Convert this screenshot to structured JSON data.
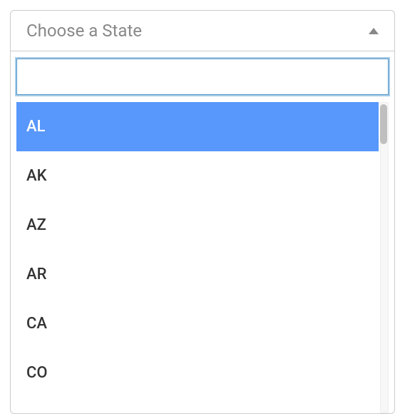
{
  "select": {
    "placeholder": "Choose a State",
    "search_value": "",
    "highlighted_index": 0,
    "options": [
      "AL",
      "AK",
      "AZ",
      "AR",
      "CA",
      "CO"
    ],
    "colors": {
      "border": "#cccccc",
      "placeholder_text": "#888888",
      "highlight_bg": "#5897fb",
      "highlight_text": "#ffffff",
      "option_text": "#333333",
      "input_border": "#5897c8",
      "input_outline": "#a7cce8",
      "scrollbar_track": "#f7f7f7",
      "scrollbar_thumb": "#bfbfbf"
    },
    "font_sizes": {
      "placeholder": 24,
      "option": 22,
      "input": 22
    }
  }
}
